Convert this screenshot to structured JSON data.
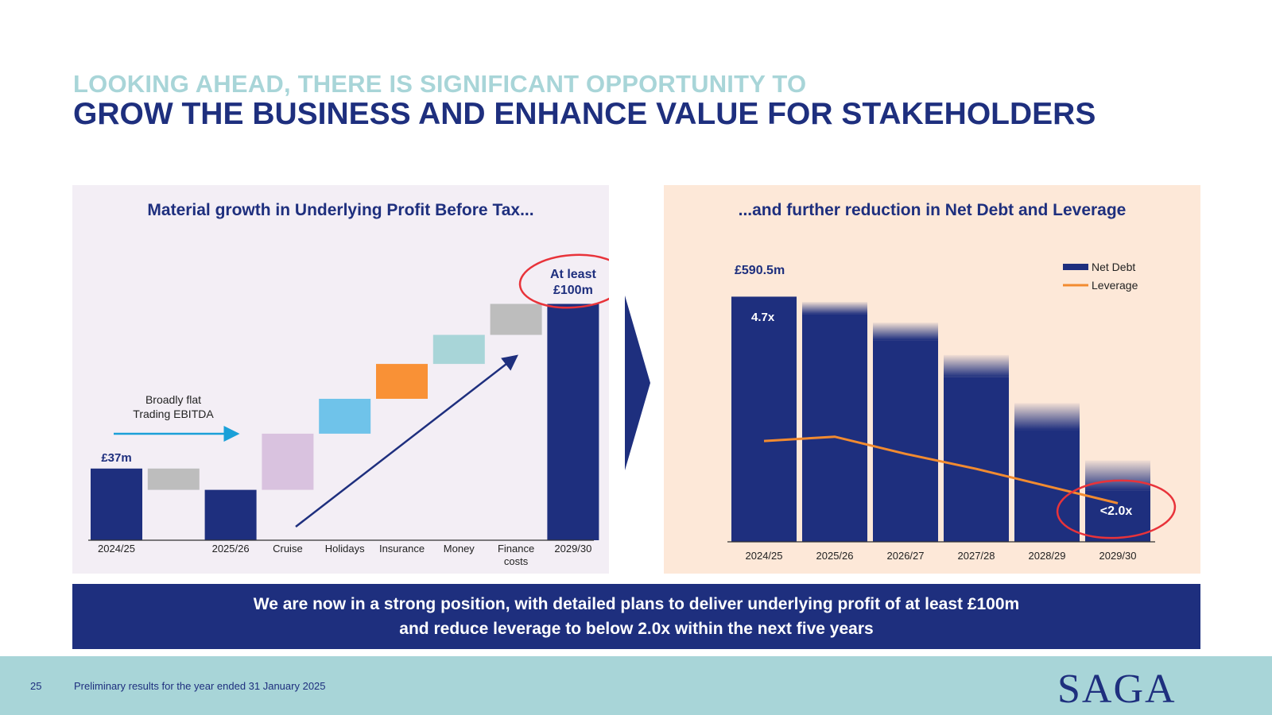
{
  "header": {
    "title_line1": "LOOKING AHEAD, THERE IS SIGNIFICANT OPPORTUNITY TO",
    "title_line2": "GROW THE BUSINESS AND ENHANCE VALUE FOR STAKEHOLDERS"
  },
  "colors": {
    "navy": "#1e2f7e",
    "teal_light": "#a8d5d8",
    "panel_left_bg": "#f3eef5",
    "panel_right_bg": "#fde8d8",
    "leverage_line": "#f28b30",
    "highlight_circle": "#e8333a"
  },
  "chart_data": [
    {
      "type": "bar",
      "subtype": "waterfall",
      "title": "Material growth in Underlying Profit Before Tax...",
      "categories": [
        "2024/25",
        "",
        "2025/26",
        "Cruise",
        "Holidays",
        "Insurance",
        "Money",
        "Finance costs",
        "2029/30"
      ],
      "steps": [
        {
          "category": "2024/25",
          "kind": "total",
          "value": 37,
          "color": "#1e2f7e"
        },
        {
          "category": "",
          "kind": "delta",
          "value": -11,
          "color": "#bdbdbd"
        },
        {
          "category": "2025/26",
          "kind": "total",
          "value": 26,
          "color": "#1e2f7e"
        },
        {
          "category": "Cruise",
          "kind": "delta",
          "value": 29,
          "color": "#d9c2df"
        },
        {
          "category": "Holidays",
          "kind": "delta",
          "value": 18,
          "color": "#6fc3ea"
        },
        {
          "category": "Insurance",
          "kind": "delta",
          "value": 18,
          "color": "#f99136"
        },
        {
          "category": "Money",
          "kind": "delta",
          "value": 15,
          "color": "#a8d5d8"
        },
        {
          "category": "Finance costs",
          "kind": "delta",
          "value": 16,
          "color": "#bdbdbd"
        },
        {
          "category": "2029/30",
          "kind": "total",
          "value": 122,
          "color": "#1e2f7e"
        }
      ],
      "data_labels": {
        "first": "£37m",
        "last_line1": "At least",
        "last_line2": "£100m"
      },
      "annotation": {
        "line1": "Broadly flat",
        "line2": "Trading EBITDA"
      },
      "ylim": [
        0,
        130
      ],
      "legend": "none"
    },
    {
      "type": "bar",
      "title": "...and further reduction in Net Debt and Leverage",
      "categories": [
        "2024/25",
        "2025/26",
        "2026/27",
        "2027/28",
        "2028/29",
        "2029/30"
      ],
      "series": [
        {
          "name": "Net Debt",
          "type": "bar",
          "values": [
            590.5,
            578,
            528,
            450,
            334,
            196
          ],
          "color": "#1e2f7e"
        },
        {
          "name": "Leverage",
          "type": "line",
          "values": [
            4.7,
            4.9,
            4.1,
            3.4,
            2.6,
            1.8
          ],
          "color": "#f28b30"
        }
      ],
      "data_labels": {
        "net_debt_first": "£590.5m",
        "leverage_first": "4.7x",
        "leverage_last": "<2.0x"
      },
      "ylim": [
        0,
        620
      ],
      "leverage_ylim": [
        0,
        12
      ],
      "legend": "top-right"
    }
  ],
  "banner": {
    "line1": "We are now in a strong position, with detailed plans to deliver underlying profit of at least £100m",
    "line2": "and reduce leverage to below 2.0x within the next five years"
  },
  "footer": {
    "page_number": "25",
    "text": "Preliminary results for the year ended 31 January 2025",
    "logo": "SAGA"
  }
}
